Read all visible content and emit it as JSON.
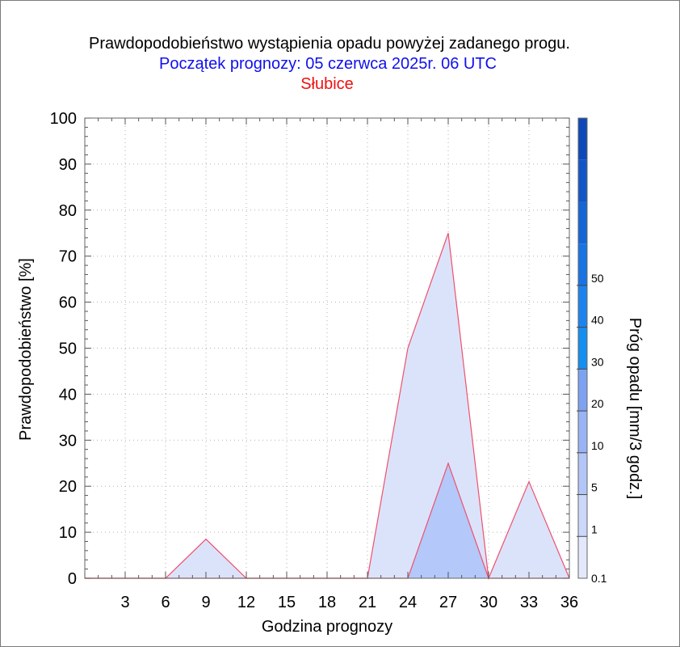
{
  "chart_data": {
    "type": "area",
    "title": "Prawdopodobieństwo wystąpienia opadu powyżej zadanego progu.",
    "subtitle": "Początek prognozy: 05 czerwca 2025r. 06 UTC",
    "location": "Słubice",
    "xlabel": "Godzina prognozy",
    "ylabel": "Prawdopodobieństwo [%]",
    "colorbar_label": "Próg opadu [mm/3 godz.]",
    "xlim": [
      0,
      36
    ],
    "ylim": [
      0,
      100
    ],
    "x_ticks": [
      3,
      6,
      9,
      12,
      15,
      18,
      21,
      24,
      27,
      30,
      33,
      36
    ],
    "y_ticks": [
      0,
      10,
      20,
      30,
      40,
      50,
      60,
      70,
      80,
      90,
      100
    ],
    "grid": true,
    "x": [
      0,
      3,
      6,
      9,
      12,
      15,
      18,
      21,
      24,
      27,
      30,
      33,
      36
    ],
    "series": [
      {
        "threshold": "0.1",
        "color": "#dbe3fb",
        "values": [
          0,
          0,
          0,
          8.5,
          0,
          0,
          0,
          0,
          50,
          75,
          0,
          21,
          0
        ]
      },
      {
        "threshold": "1",
        "color": "#b4c8fa",
        "values": [
          0,
          0,
          0,
          0,
          0,
          0,
          0,
          0,
          0,
          25,
          0,
          0,
          0
        ]
      }
    ],
    "colorbar": {
      "labels": [
        "0.1",
        "1",
        "5",
        "10",
        "20",
        "30",
        "40",
        "50"
      ],
      "colors": [
        "#e3e8fc",
        "#cbd8fb",
        "#b3c6f8",
        "#99b4f5",
        "#7ea2f2",
        "#148ff0",
        "#1c83ee",
        "#1874e2",
        "#1565d4",
        "#1256c6",
        "#0f48b8"
      ]
    }
  }
}
